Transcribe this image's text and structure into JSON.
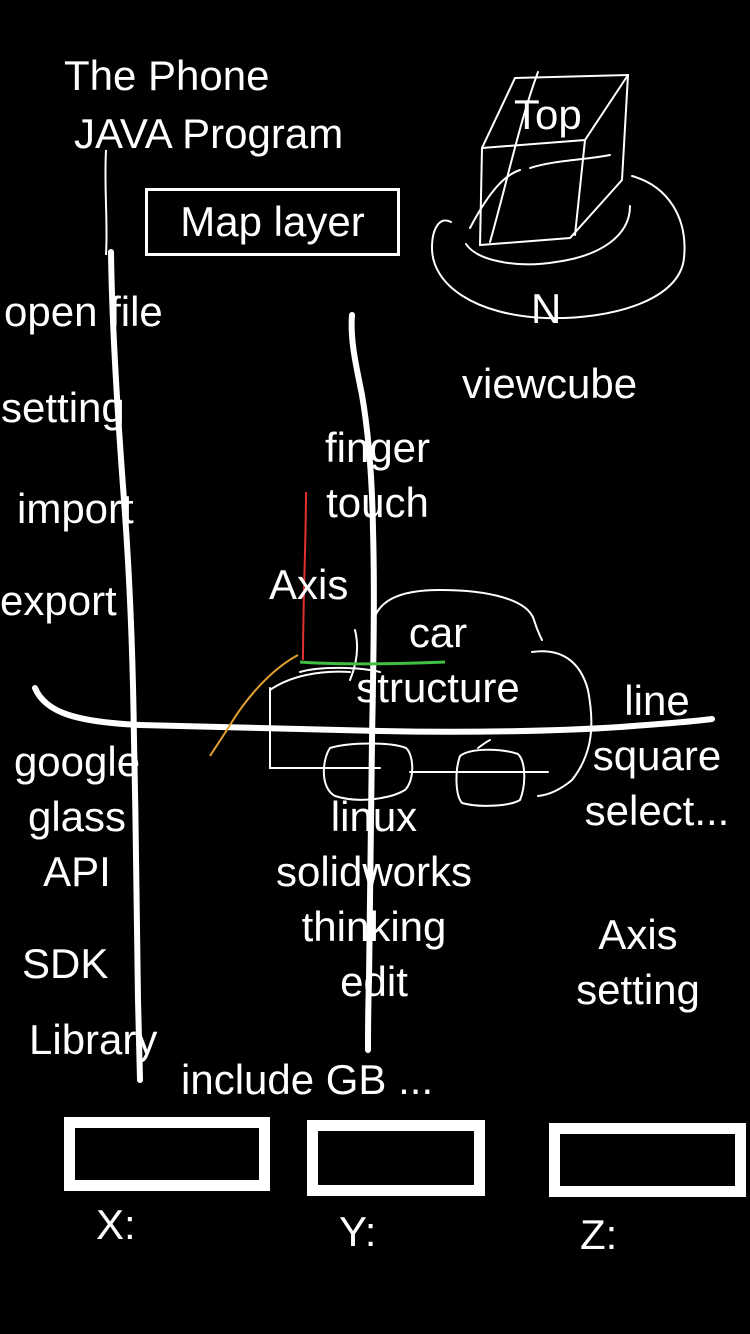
{
  "title": {
    "line1": "The Phone",
    "line2": "JAVA Program"
  },
  "map_layer_label": "Map layer",
  "viewcube": {
    "top_label": "Top",
    "north_label": "N",
    "caption": "viewcube"
  },
  "left_menu": {
    "open_file": "open file",
    "setting": "setting",
    "import": "import",
    "export": "export",
    "google_glass": [
      "google",
      "glass",
      "API"
    ],
    "sdk": "SDK",
    "library": "Library"
  },
  "center_notes": {
    "finger_touch": [
      "finger",
      "touch"
    ],
    "axis": "Axis",
    "car_structure": [
      "car",
      "structure"
    ],
    "linux_block": [
      "linux",
      "solidworks",
      "thinking",
      "edit"
    ],
    "include": "include GB ..."
  },
  "right_notes": {
    "line_square": [
      "line",
      "square",
      "select..."
    ],
    "axis_setting": [
      "Axis",
      "setting"
    ]
  },
  "coordinates": {
    "x_label": "X:",
    "y_label": "Y:",
    "z_label": "Z:",
    "x_value": "",
    "y_value": "",
    "z_value": ""
  },
  "colors": {
    "background": "#000000",
    "ink": "#ffffff",
    "axis_red": "#e03030",
    "axis_green": "#40c040",
    "axis_orange": "#e0a030"
  }
}
